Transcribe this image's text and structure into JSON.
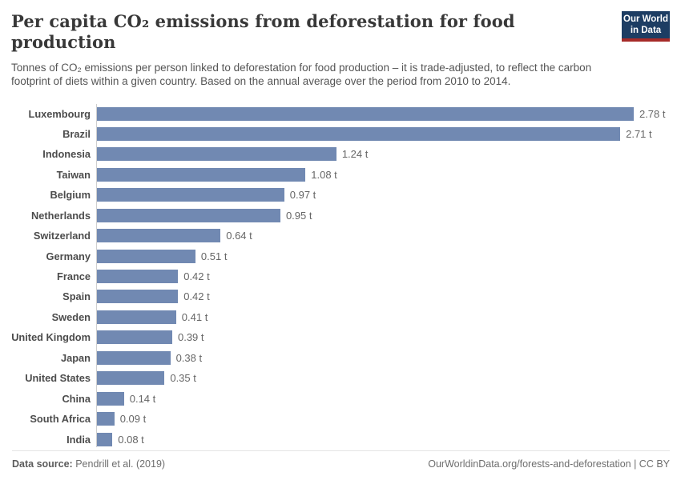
{
  "header": {
    "title": "Per capita CO₂ emissions from deforestation for food production",
    "subtitle": "Tonnes of CO₂ emissions per person linked to deforestation for food production – it is trade-adjusted, to reflect the carbon footprint of diets within a given country. Based on the annual average over the period from 2010 to 2014.",
    "logo_line1": "Our World",
    "logo_line2": "in Data",
    "logo_bg_color": "#1d3d63",
    "logo_stripe_color": "#a62a28"
  },
  "chart_data": {
    "type": "bar",
    "orientation": "horizontal",
    "title": "Per capita CO₂ emissions from deforestation for food production",
    "unit": "t",
    "categories": [
      "Luxembourg",
      "Brazil",
      "Indonesia",
      "Taiwan",
      "Belgium",
      "Netherlands",
      "Switzerland",
      "Germany",
      "France",
      "Spain",
      "Sweden",
      "United Kingdom",
      "Japan",
      "United States",
      "China",
      "South Africa",
      "India"
    ],
    "values": [
      2.78,
      2.71,
      1.24,
      1.08,
      0.97,
      0.95,
      0.64,
      0.51,
      0.42,
      0.42,
      0.41,
      0.39,
      0.38,
      0.35,
      0.14,
      0.09,
      0.08
    ],
    "value_labels": [
      "2.78 t",
      "2.71 t",
      "1.24 t",
      "1.08 t",
      "0.97 t",
      "0.95 t",
      "0.64 t",
      "0.51 t",
      "0.42 t",
      "0.42 t",
      "0.41 t",
      "0.39 t",
      "0.38 t",
      "0.35 t",
      "0.14 t",
      "0.09 t",
      "0.08 t"
    ],
    "xlim": [
      0,
      2.78
    ],
    "bar_color": "#7189b2",
    "grid": false,
    "legend": false
  },
  "footer": {
    "datasource_label": "Data source:",
    "datasource_value": " Pendrill et al. (2019)",
    "link": "OurWorldinData.org/forests-and-deforestation | CC BY"
  }
}
